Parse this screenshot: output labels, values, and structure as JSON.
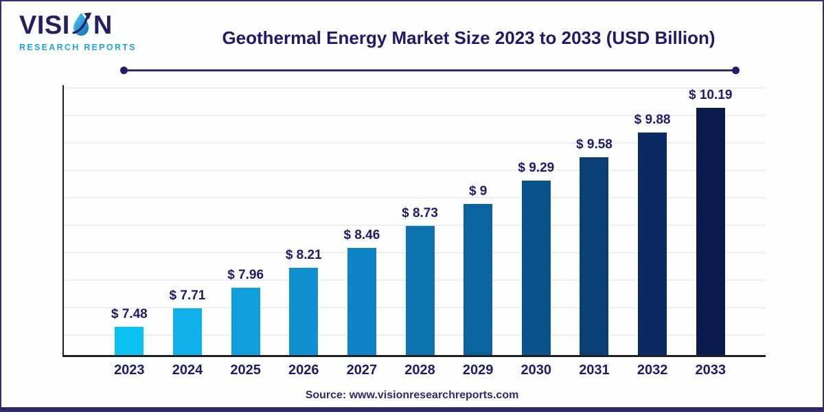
{
  "brand": {
    "name_pre": "VISI",
    "name_post": "N",
    "subtitle": "RESEARCH REPORTS",
    "navy": "#221F63",
    "cyan": "#1FA3E5"
  },
  "header": {
    "title": "Geothermal Energy Market Size 2023 to 2033 (USD Billion)"
  },
  "footer": {
    "source": "Source: www.visionresearchreports.com"
  },
  "chart_data": {
    "type": "bar",
    "title": "Geothermal Energy Market Size 2023 to 2033 (USD Billion)",
    "unit": "USD Billion",
    "categories": [
      "2023",
      "2024",
      "2025",
      "2026",
      "2027",
      "2028",
      "2029",
      "2030",
      "2031",
      "2032",
      "2033"
    ],
    "values": [
      7.48,
      7.71,
      7.96,
      8.21,
      8.46,
      8.73,
      9,
      9.29,
      9.58,
      9.88,
      10.19
    ],
    "value_labels": [
      "$ 7.48",
      "$ 7.71",
      "$ 7.96",
      "$ 8.21",
      "$ 8.46",
      "$ 8.73",
      "$ 9",
      "$ 9.29",
      "$ 9.58",
      "$ 9.88",
      "$ 10.19"
    ],
    "bar_colors": [
      "#0BC1F0",
      "#10B0E8",
      "#0F9FDB",
      "#1090CF",
      "#0E82C2",
      "#0C72B0",
      "#0B649F",
      "#0A538C",
      "#0A3F74",
      "#0B2A63",
      "#0A1A4D"
    ],
    "ylim": [
      7.13,
      10.47
    ],
    "grid": "horizontal-light",
    "gridline_color": "#ECECEC",
    "axis_color": "#1F1F1F",
    "label_color": "#1D1A69",
    "legend": false
  }
}
